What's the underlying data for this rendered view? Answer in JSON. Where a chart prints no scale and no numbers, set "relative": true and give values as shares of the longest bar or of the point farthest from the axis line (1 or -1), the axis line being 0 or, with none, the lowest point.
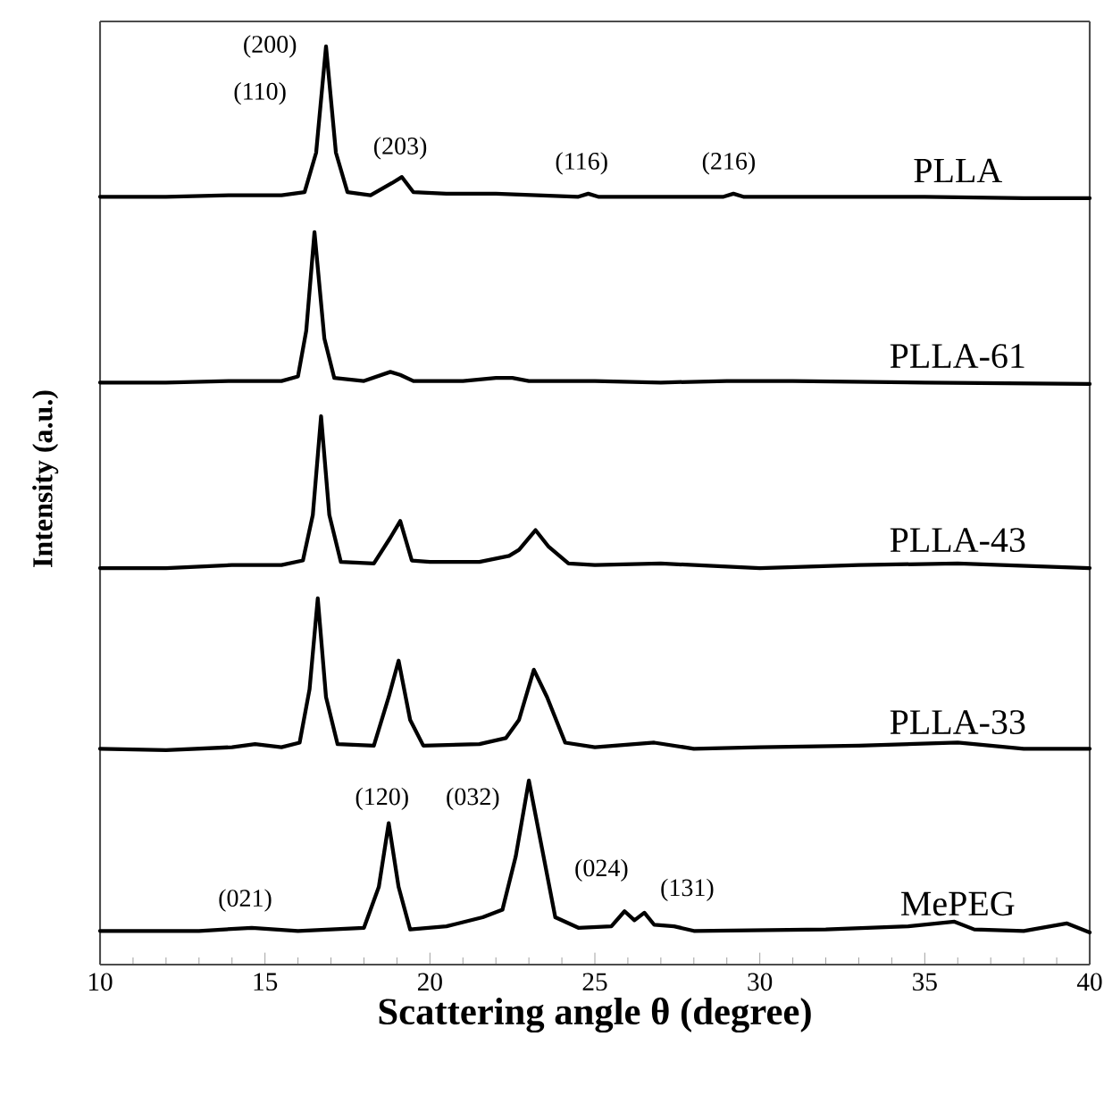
{
  "chart_data": [
    {
      "type": "line",
      "relative": true,
      "xlim": [
        10,
        40
      ],
      "tick_labels": false,
      "marker": "none",
      "line_style": "solid",
      "series": [
        {
          "name": "PLLA",
          "color": "#000000",
          "x": [
            10,
            12,
            14,
            15.5,
            16.2,
            16.55,
            16.85,
            17.15,
            17.5,
            18.2,
            18.85,
            19.15,
            19.5,
            20.5,
            22,
            24.5,
            24.8,
            25.1,
            27,
            28.9,
            29.2,
            29.5,
            32,
            35,
            38,
            40
          ],
          "values": [
            0.01,
            0.01,
            0.02,
            0.02,
            0.04,
            0.3,
            1.0,
            0.3,
            0.04,
            0.02,
            0.1,
            0.14,
            0.04,
            0.03,
            0.03,
            0.01,
            0.03,
            0.01,
            0.01,
            0.01,
            0.03,
            0.01,
            0.01,
            0.01,
            0,
            0
          ]
        }
      ],
      "annotations": [
        "(200)",
        "(110)",
        "(203)",
        "(116)",
        "(216)"
      ]
    },
    {
      "type": "line",
      "relative": true,
      "xlim": [
        10,
        40
      ],
      "tick_labels": false,
      "marker": "none",
      "line_style": "solid",
      "series": [
        {
          "name": "PLLA-61",
          "color": "#000000",
          "x": [
            10,
            12,
            14,
            15.5,
            16.0,
            16.25,
            16.5,
            16.8,
            17.1,
            18,
            18.8,
            19.1,
            19.5,
            21,
            22,
            22.5,
            23,
            25,
            27,
            29,
            31,
            35,
            40
          ],
          "values": [
            0.01,
            0.01,
            0.02,
            0.02,
            0.05,
            0.35,
            1.0,
            0.3,
            0.04,
            0.02,
            0.08,
            0.06,
            0.02,
            0.02,
            0.04,
            0.04,
            0.02,
            0.02,
            0.01,
            0.02,
            0.02,
            0.01,
            0
          ]
        }
      ]
    },
    {
      "type": "line",
      "relative": true,
      "xlim": [
        10,
        40
      ],
      "tick_labels": false,
      "marker": "none",
      "line_style": "solid",
      "ylabel": "Intensity (a.u.)",
      "series": [
        {
          "name": "PLLA-43",
          "color": "#000000",
          "x": [
            10,
            12,
            14,
            15.5,
            16.15,
            16.45,
            16.7,
            16.95,
            17.3,
            18.3,
            18.8,
            19.1,
            19.45,
            20,
            21.5,
            22.4,
            22.7,
            23.2,
            23.6,
            24.2,
            25,
            27,
            30,
            33,
            36,
            40
          ],
          "values": [
            0.0,
            0.0,
            0.02,
            0.02,
            0.05,
            0.35,
            1.0,
            0.35,
            0.04,
            0.03,
            0.2,
            0.31,
            0.05,
            0.04,
            0.04,
            0.08,
            0.12,
            0.25,
            0.14,
            0.03,
            0.02,
            0.03,
            0.0,
            0.02,
            0.03,
            0.0
          ]
        }
      ]
    },
    {
      "type": "line",
      "relative": true,
      "xlim": [
        10,
        40
      ],
      "tick_labels": false,
      "marker": "none",
      "line_style": "solid",
      "series": [
        {
          "name": "PLLA-33",
          "color": "#000000",
          "x": [
            10,
            12,
            14,
            14.7,
            15.5,
            16.05,
            16.35,
            16.6,
            16.85,
            17.2,
            18.3,
            18.75,
            19.05,
            19.4,
            19.8,
            21.5,
            22.3,
            22.7,
            23.15,
            23.55,
            24.1,
            25,
            26.8,
            28,
            30,
            33,
            36,
            38,
            40
          ],
          "values": [
            0.01,
            0.0,
            0.02,
            0.04,
            0.02,
            0.05,
            0.4,
            1.0,
            0.35,
            0.04,
            0.03,
            0.35,
            0.59,
            0.2,
            0.03,
            0.04,
            0.08,
            0.2,
            0.53,
            0.35,
            0.05,
            0.02,
            0.05,
            0.01,
            0.02,
            0.03,
            0.05,
            0.01,
            0.01
          ]
        }
      ]
    },
    {
      "type": "line",
      "relative": true,
      "xlim": [
        10,
        40
      ],
      "xticks": [
        10,
        15,
        20,
        25,
        30,
        35,
        40
      ],
      "tick_labels": "x",
      "marker": "none",
      "line_style": "solid",
      "xlabel": "Scattering angle θ (degree)",
      "series": [
        {
          "name": "MePEG",
          "color": "#000000",
          "x": [
            10,
            13,
            14.6,
            16,
            18,
            18.45,
            18.75,
            19.05,
            19.4,
            20.5,
            21.6,
            22.2,
            22.6,
            23.0,
            23.4,
            23.8,
            24.5,
            25.5,
            25.9,
            26.2,
            26.5,
            26.8,
            27.4,
            28,
            32,
            34.5,
            35.9,
            36.5,
            38,
            39.3,
            40
          ],
          "values": [
            0.183,
            0.183,
            0.2,
            0.183,
            0.2,
            0.422,
            0.769,
            0.422,
            0.191,
            0.208,
            0.257,
            0.299,
            0.587,
            1.0,
            0.629,
            0.257,
            0.2,
            0.208,
            0.29,
            0.241,
            0.282,
            0.216,
            0.208,
            0.183,
            0.191,
            0.208,
            0.233,
            0.191,
            0.183,
            0.224,
            0.175
          ]
        }
      ],
      "annotations": [
        "(021)",
        "(120)",
        "(032)",
        "(024)",
        "(131)"
      ]
    }
  ]
}
